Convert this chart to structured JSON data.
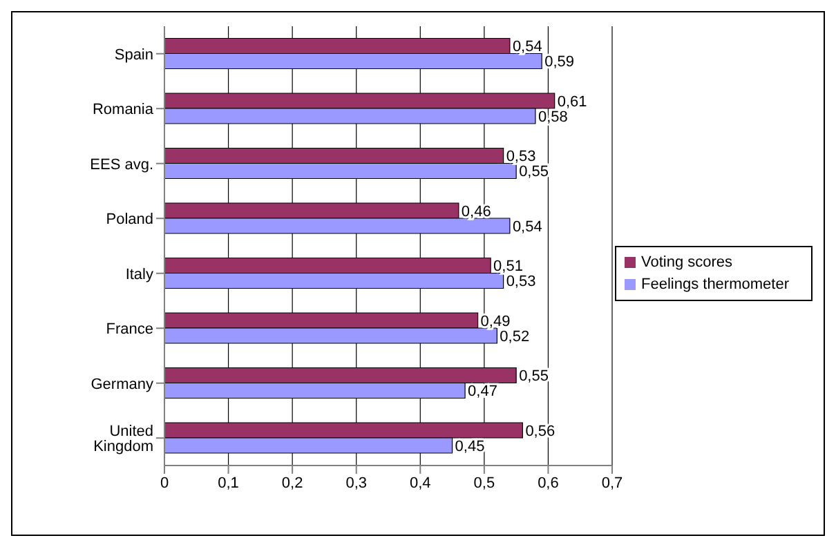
{
  "chart_data": {
    "type": "bar",
    "orientation": "horizontal",
    "categories": [
      "Spain",
      "Romania",
      "EES avg.",
      "Poland",
      "Italy",
      "France",
      "Germany",
      "United Kingdom"
    ],
    "series": [
      {
        "name": "Voting scores",
        "color": "#993366",
        "values": [
          0.54,
          0.61,
          0.53,
          0.46,
          0.51,
          0.49,
          0.55,
          0.56
        ],
        "value_labels": [
          "0,54",
          "0,61",
          "0,53",
          "0,46",
          "0,51",
          "0,49",
          "0,55",
          "0,56"
        ]
      },
      {
        "name": "Feelings thermometer",
        "color": "#9999ff",
        "values": [
          0.59,
          0.58,
          0.55,
          0.54,
          0.53,
          0.52,
          0.47,
          0.45
        ],
        "value_labels": [
          "0,59",
          "0,58",
          "0,55",
          "0,54",
          "0,53",
          "0,52",
          "0,47",
          "0,45"
        ]
      }
    ],
    "xlim": [
      0,
      0.7
    ],
    "xticks": [
      0,
      {
        "value": 0.1,
        "label": "0,1"
      },
      {
        "value": 0.2,
        "label": "0,2"
      },
      {
        "value": 0.3,
        "label": "0,3"
      },
      {
        "value": 0.4,
        "label": "0,4"
      },
      {
        "value": 0.5,
        "label": "0,5"
      },
      {
        "value": 0.6,
        "label": "0,6"
      },
      {
        "value": 0.7,
        "label": "0,7"
      }
    ],
    "grid": "x",
    "legend": "right"
  }
}
